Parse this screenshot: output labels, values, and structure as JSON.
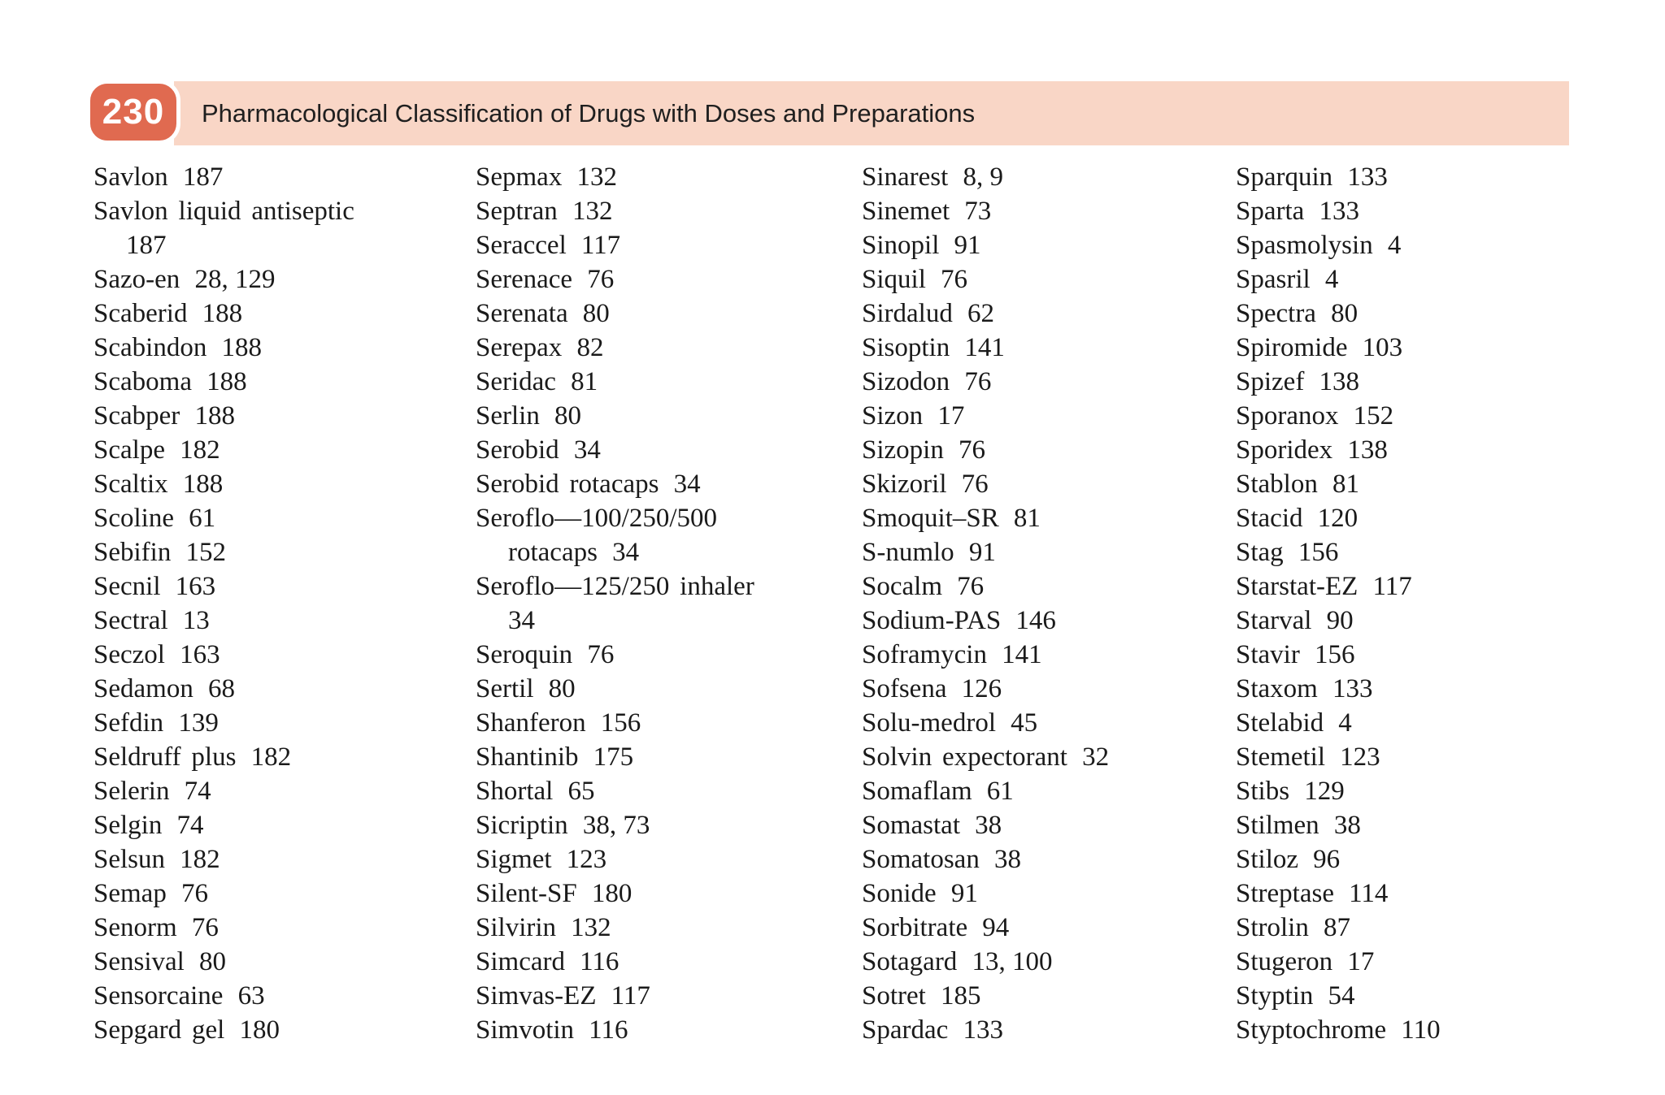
{
  "page": {
    "number": "230",
    "title": "Pharmacological Classification of Drugs with Doses and Preparations"
  },
  "colors": {
    "badge": "#e06a50",
    "band": "#f9d6c6",
    "text": "#1a1a1a"
  },
  "index": {
    "columns": [
      {
        "lines": [
          {
            "n": "Savlon",
            "p": "187"
          },
          {
            "n": "Savlon liquid antiseptic",
            "p": ""
          },
          {
            "n": "",
            "p": "187",
            "i": true
          },
          {
            "n": "Sazo-en",
            "p": "28, 129"
          },
          {
            "n": "Scaberid",
            "p": "188"
          },
          {
            "n": "Scabindon",
            "p": "188"
          },
          {
            "n": "Scaboma",
            "p": "188"
          },
          {
            "n": "Scabper",
            "p": "188"
          },
          {
            "n": "Scalpe",
            "p": "182"
          },
          {
            "n": "Scaltix",
            "p": "188"
          },
          {
            "n": "Scoline",
            "p": "61"
          },
          {
            "n": "Sebifin",
            "p": "152"
          },
          {
            "n": "Secnil",
            "p": "163"
          },
          {
            "n": "Sectral",
            "p": "13"
          },
          {
            "n": "Seczol",
            "p": "163"
          },
          {
            "n": "Sedamon",
            "p": "68"
          },
          {
            "n": "Sefdin",
            "p": "139"
          },
          {
            "n": "Seldruff plus",
            "p": "182"
          },
          {
            "n": "Selerin",
            "p": "74"
          },
          {
            "n": "Selgin",
            "p": "74"
          },
          {
            "n": "Selsun",
            "p": "182"
          },
          {
            "n": "Semap",
            "p": "76"
          },
          {
            "n": "Senorm",
            "p": "76"
          },
          {
            "n": "Sensival",
            "p": "80"
          },
          {
            "n": "Sensorcaine",
            "p": "63"
          },
          {
            "n": "Sepgard gel",
            "p": "180"
          }
        ]
      },
      {
        "lines": [
          {
            "n": "Sepmax",
            "p": "132"
          },
          {
            "n": "Septran",
            "p": "132"
          },
          {
            "n": "Seraccel",
            "p": "117"
          },
          {
            "n": "Serenace",
            "p": "76"
          },
          {
            "n": "Serenata",
            "p": "80"
          },
          {
            "n": "Serepax",
            "p": "82"
          },
          {
            "n": "Seridac",
            "p": "81"
          },
          {
            "n": "Serlin",
            "p": "80"
          },
          {
            "n": "Serobid",
            "p": "34"
          },
          {
            "n": "Serobid rotacaps",
            "p": "34"
          },
          {
            "n": "Seroflo—100/250/500",
            "p": ""
          },
          {
            "n": "rotacaps",
            "p": "34",
            "i": true
          },
          {
            "n": "Seroflo—125/250 inhaler",
            "p": ""
          },
          {
            "n": "",
            "p": "34",
            "i": true
          },
          {
            "n": "Seroquin",
            "p": "76"
          },
          {
            "n": "Sertil",
            "p": "80"
          },
          {
            "n": "Shanferon",
            "p": "156"
          },
          {
            "n": "Shantinib",
            "p": "175"
          },
          {
            "n": "Shortal",
            "p": "65"
          },
          {
            "n": "Sicriptin",
            "p": "38, 73"
          },
          {
            "n": "Sigmet",
            "p": "123"
          },
          {
            "n": "Silent-SF",
            "p": "180"
          },
          {
            "n": "Silvirin",
            "p": "132"
          },
          {
            "n": "Simcard",
            "p": "116"
          },
          {
            "n": "Simvas-EZ",
            "p": "117"
          },
          {
            "n": "Simvotin",
            "p": "116"
          }
        ]
      },
      {
        "lines": [
          {
            "n": "Sinarest",
            "p": "8, 9"
          },
          {
            "n": "Sinemet",
            "p": "73"
          },
          {
            "n": "Sinopil",
            "p": "91"
          },
          {
            "n": "Siquil",
            "p": "76"
          },
          {
            "n": "Sirdalud",
            "p": "62"
          },
          {
            "n": "Sisoptin",
            "p": "141"
          },
          {
            "n": "Sizodon",
            "p": "76"
          },
          {
            "n": "Sizon",
            "p": "17"
          },
          {
            "n": "Sizopin",
            "p": "76"
          },
          {
            "n": "Skizoril",
            "p": "76"
          },
          {
            "n": "Smoquit–SR",
            "p": "81"
          },
          {
            "n": "S-numlo",
            "p": "91"
          },
          {
            "n": "Socalm",
            "p": "76"
          },
          {
            "n": "Sodium-PAS",
            "p": "146"
          },
          {
            "n": "Soframycin",
            "p": "141"
          },
          {
            "n": "Sofsena",
            "p": "126"
          },
          {
            "n": "Solu-medrol",
            "p": "45"
          },
          {
            "n": "Solvin expectorant",
            "p": "32"
          },
          {
            "n": "Somaflam",
            "p": "61"
          },
          {
            "n": "Somastat",
            "p": "38"
          },
          {
            "n": "Somatosan",
            "p": "38"
          },
          {
            "n": "Sonide",
            "p": "91"
          },
          {
            "n": "Sorbitrate",
            "p": "94"
          },
          {
            "n": "Sotagard",
            "p": "13, 100"
          },
          {
            "n": "Sotret",
            "p": "185"
          },
          {
            "n": "Spardac",
            "p": "133"
          }
        ]
      },
      {
        "lines": [
          {
            "n": "Sparquin",
            "p": "133"
          },
          {
            "n": "Sparta",
            "p": "133"
          },
          {
            "n": "Spasmolysin",
            "p": "4"
          },
          {
            "n": "Spasril",
            "p": "4"
          },
          {
            "n": "Spectra",
            "p": "80"
          },
          {
            "n": "Spiromide",
            "p": "103"
          },
          {
            "n": "Spizef",
            "p": "138"
          },
          {
            "n": "Sporanox",
            "p": "152"
          },
          {
            "n": "Sporidex",
            "p": "138"
          },
          {
            "n": "Stablon",
            "p": "81"
          },
          {
            "n": "Stacid",
            "p": "120"
          },
          {
            "n": "Stag",
            "p": "156"
          },
          {
            "n": "Starstat-EZ",
            "p": "117"
          },
          {
            "n": "Starval",
            "p": "90"
          },
          {
            "n": "Stavir",
            "p": "156"
          },
          {
            "n": "Staxom",
            "p": "133"
          },
          {
            "n": "Stelabid",
            "p": "4"
          },
          {
            "n": "Stemetil",
            "p": "123"
          },
          {
            "n": "Stibs",
            "p": "129"
          },
          {
            "n": "Stilmen",
            "p": "38"
          },
          {
            "n": "Stiloz",
            "p": "96"
          },
          {
            "n": "Streptase",
            "p": "114"
          },
          {
            "n": "Strolin",
            "p": "87"
          },
          {
            "n": "Stugeron",
            "p": "17"
          },
          {
            "n": "Styptin",
            "p": "54"
          },
          {
            "n": "Styptochrome",
            "p": "110"
          }
        ]
      }
    ]
  }
}
